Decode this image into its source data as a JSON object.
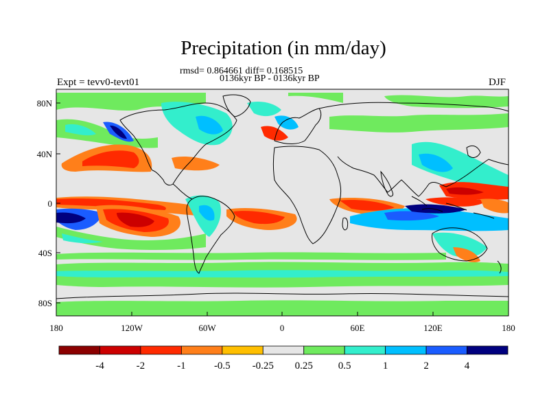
{
  "title": "Precipitation (in mm/day)",
  "stats_line": "rmsd= 0.864661 diff= 0.168515",
  "period_line": "0136kyr BP - 0136kyr BP",
  "experiment": "Expt = tevv0-tevt01",
  "season": "DJF",
  "lat_ticks": [
    "80N",
    "40N",
    "0",
    "40S",
    "80S"
  ],
  "lon_ticks": [
    "180",
    "120W",
    "60W",
    "0",
    "60E",
    "120E",
    "180"
  ],
  "colorbar": {
    "labels": [
      "-4",
      "-2",
      "-1",
      "-0.5",
      "-0.25",
      "0.25",
      "0.5",
      "1",
      "2",
      "4"
    ],
    "colors": [
      "#8b0000",
      "#cc0000",
      "#ff2a00",
      "#ff7f1a",
      "#ffbf00",
      "#e6e6e6",
      "#6fea5e",
      "#33eecc",
      "#00bfff",
      "#1a5cff",
      "#00007f"
    ]
  }
}
